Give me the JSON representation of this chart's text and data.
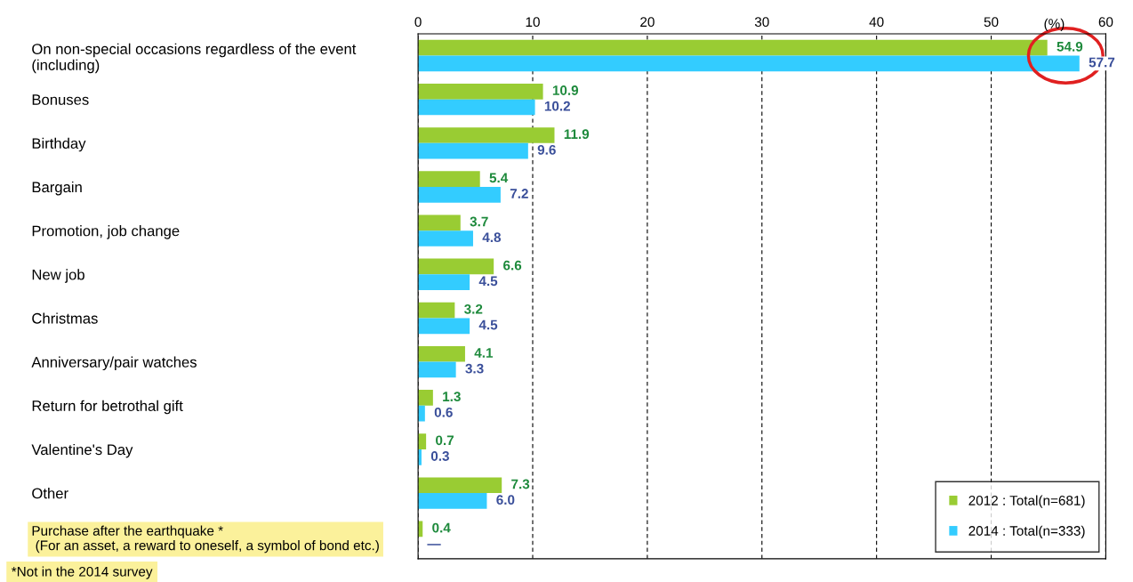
{
  "chart_data": {
    "type": "bar",
    "orientation": "horizontal",
    "xlabel": "(%)",
    "categories": [
      "On non-special occasions regardless of the event\n(including)",
      "Bonuses",
      "Birthday",
      "Bargain",
      "Promotion, job change",
      "New job",
      "Christmas",
      "Anniversary/pair watches",
      "Return for betrothal gift",
      "Valentine's Day",
      "Other",
      "Purchase after the earthquake *\n (For an asset, a reward to oneself, a symbol of bond etc.)"
    ],
    "series": [
      {
        "name": "2012 : Total(n=681)",
        "color": "#99cc33",
        "values": [
          54.9,
          10.9,
          11.9,
          5.4,
          3.7,
          6.6,
          3.2,
          4.1,
          1.3,
          0.7,
          7.3,
          0.4
        ]
      },
      {
        "name": "2014 : Total(n=333)",
        "color": "#33ccff",
        "values": [
          57.7,
          10.2,
          9.6,
          7.2,
          4.8,
          4.5,
          4.5,
          3.3,
          0.6,
          0.3,
          6.0,
          null
        ],
        "value_labels": [
          "57.7",
          "10.2",
          "9.6",
          "7.2",
          "4.8",
          "4.5",
          "4.5",
          "3.3",
          "0.6",
          "0.3",
          "6.0",
          "—"
        ]
      }
    ],
    "xlim": [
      0,
      60
    ],
    "xticks": [
      0,
      10,
      20,
      30,
      40,
      50,
      60
    ],
    "grid": "x",
    "legend": "bottom right",
    "data_labels": true,
    "annotations": [
      "*Not in the 2014 survey"
    ]
  }
}
